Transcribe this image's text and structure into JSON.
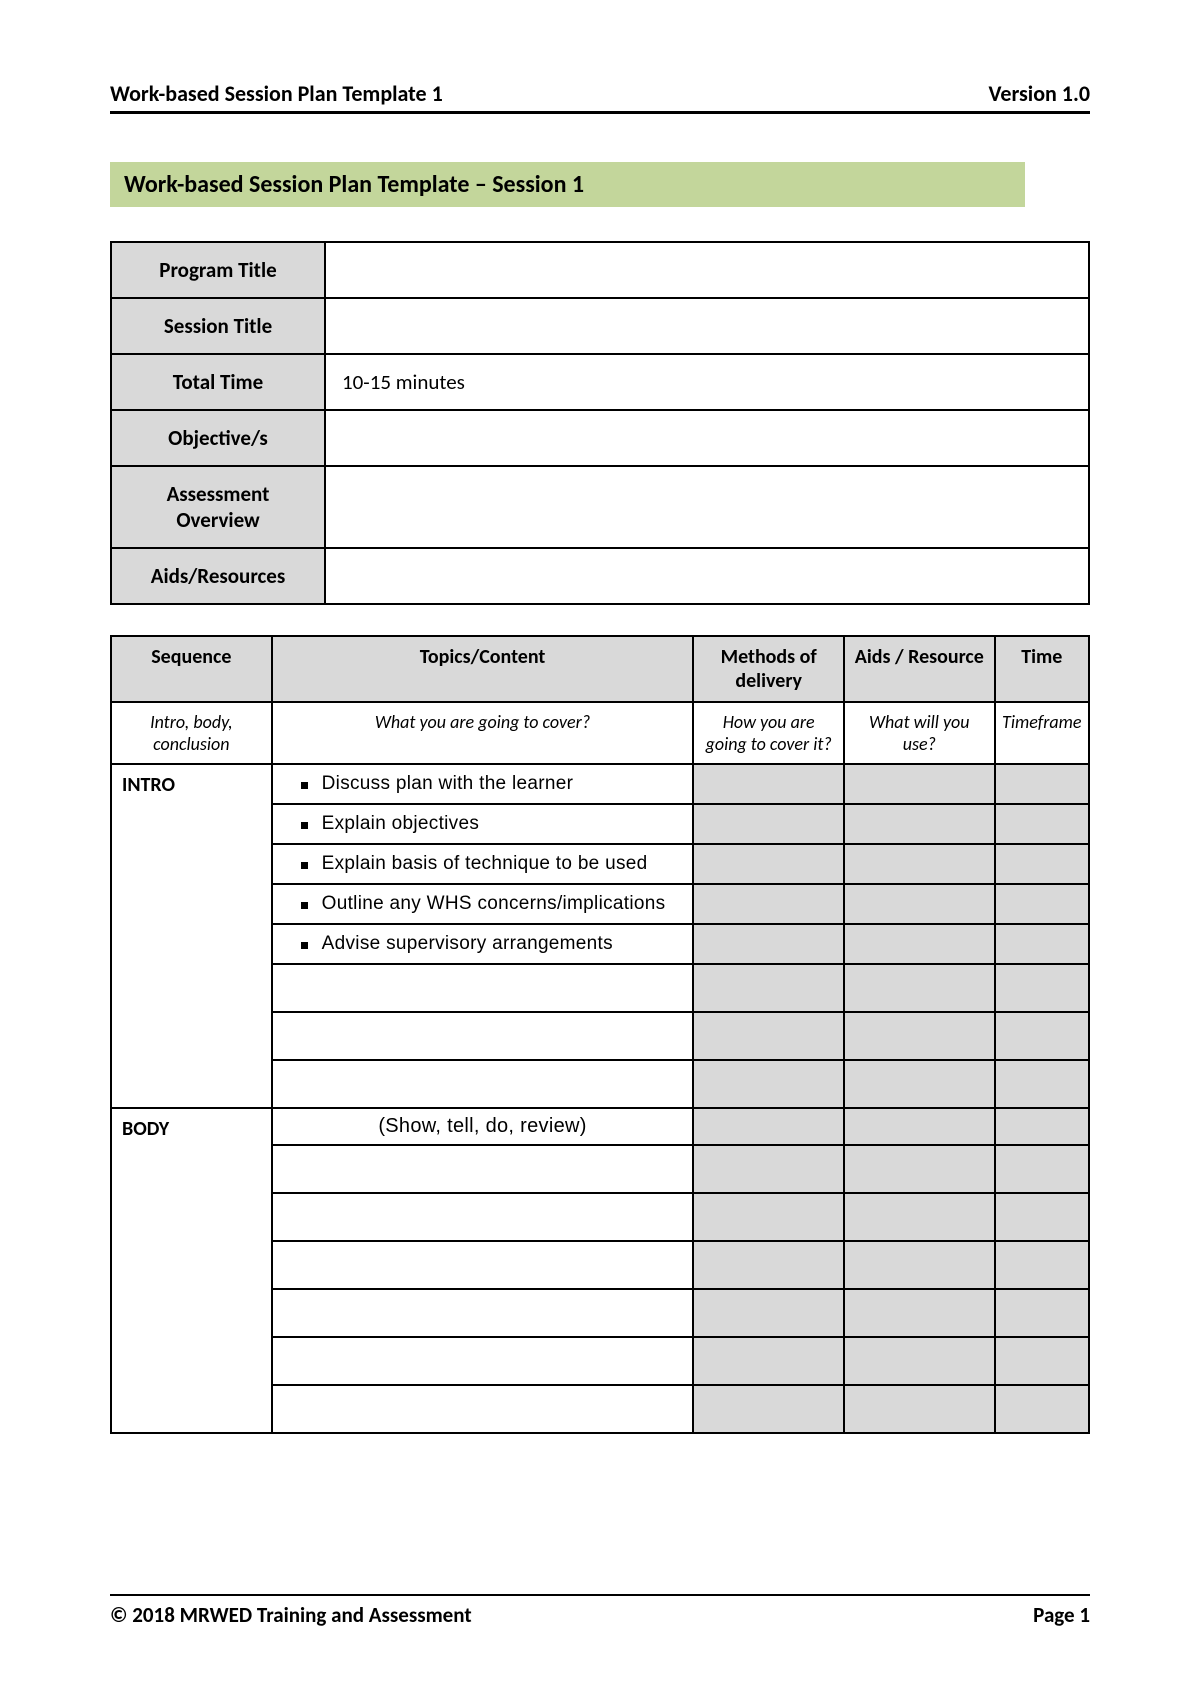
{
  "header": {
    "left": "Work-based Session Plan Template 1",
    "right": "Version 1.0"
  },
  "title_bar": "Work-based Session Plan Template – Session 1",
  "info_table": {
    "rows": [
      {
        "label": "Program Title",
        "value": ""
      },
      {
        "label": "Session Title",
        "value": ""
      },
      {
        "label": "Total Time",
        "value": "10-15 minutes"
      },
      {
        "label": "Objective/s",
        "value": ""
      },
      {
        "label": "Assessment Overview",
        "value": ""
      },
      {
        "label": "Aids/Resources",
        "value": ""
      }
    ]
  },
  "seq_table": {
    "columns": [
      "Sequence",
      "Topics/Content",
      "Methods of delivery",
      "Aids / Resource",
      "Time"
    ],
    "hints": [
      "Intro, body, conclusion",
      "What you are going to cover?",
      "How you are going to cover it?",
      "What will you use?",
      "Timeframe"
    ],
    "intro": {
      "label": "INTRO",
      "bullets": [
        "Discuss plan with the learner",
        "Explain objectives",
        "Explain basis of technique to be used",
        "Outline any WHS concerns/implications",
        "Advise supervisory arrangements"
      ],
      "blank_rows": 3
    },
    "body": {
      "label": "BODY",
      "note": "(Show, tell, do, review)",
      "blank_rows": 6
    }
  },
  "footer": {
    "left": "© 2018 MRWED Training and Assessment",
    "right": "Page 1"
  },
  "colors": {
    "title_bar_bg": "#c3d69b",
    "header_cell_bg": "#d9d9d9",
    "border": "#000000",
    "text": "#000000",
    "page_bg": "#ffffff"
  }
}
